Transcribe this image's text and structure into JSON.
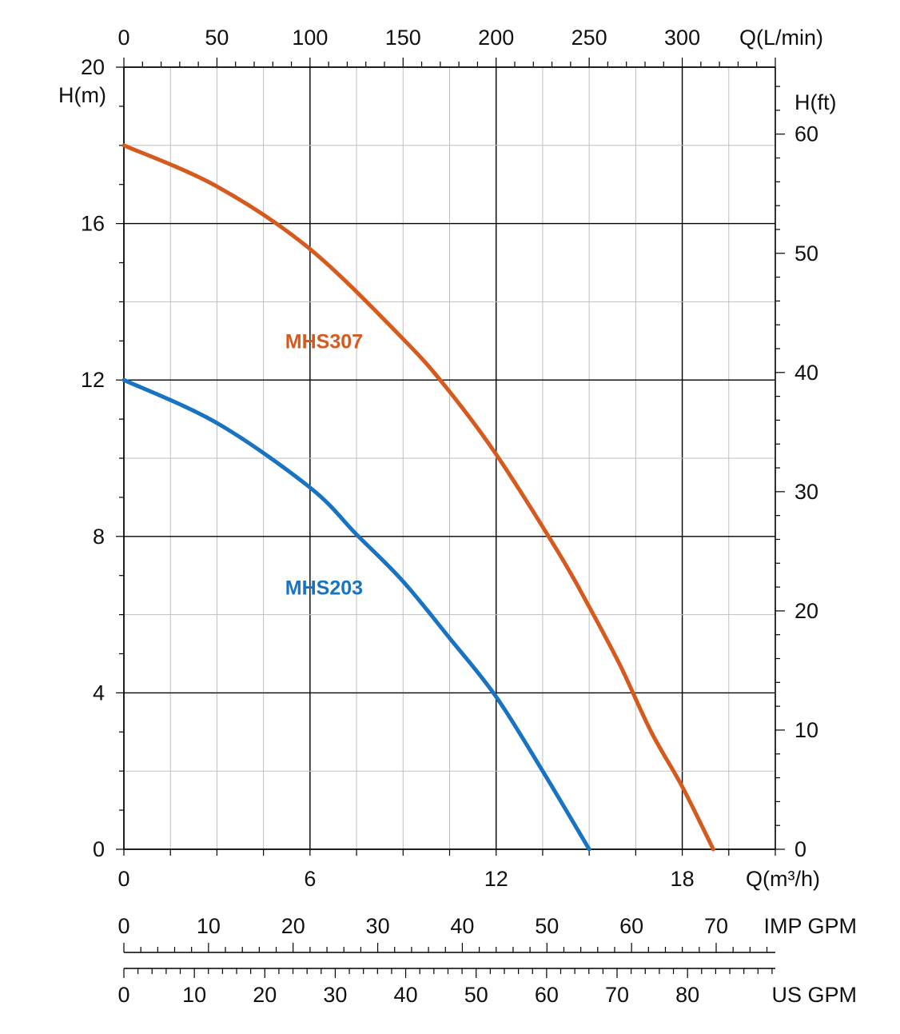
{
  "chart_data": {
    "type": "line",
    "x_axis": {
      "label": "Q(m³/h)",
      "min": 0,
      "max": 21,
      "ticks": [
        0,
        6,
        12,
        18
      ],
      "grid_step": 1.5
    },
    "x_axis_top": {
      "label": "Q(L/min)",
      "factor_from_m3h": 16.6667,
      "ticks": [
        0,
        50,
        100,
        150,
        200,
        250,
        300
      ]
    },
    "x_axis_imp": {
      "label": "IMP GPM",
      "factor_from_m3h": 3.6662,
      "ticks": [
        0,
        10,
        20,
        30,
        40,
        50,
        60,
        70
      ],
      "minor_step": 2
    },
    "x_axis_us": {
      "label": "US GPM",
      "factor_from_m3h": 4.4029,
      "ticks": [
        0,
        10,
        20,
        30,
        40,
        50,
        60,
        70,
        80
      ],
      "minor_step": 2
    },
    "y_axis": {
      "label": "H(m)",
      "min": 0,
      "max": 20,
      "ticks": [
        0,
        4,
        8,
        12,
        16,
        20
      ],
      "grid_step": 2
    },
    "y_axis_right": {
      "label": "H(ft)",
      "factor_from_m": 3.2808,
      "ticks": [
        0,
        10,
        20,
        30,
        40,
        50,
        60
      ],
      "minor_step": 2
    },
    "grid": true,
    "series": [
      {
        "name": "MHS307",
        "color": "#D65A1E",
        "label_at": [
          5.2,
          13.0
        ],
        "points": [
          [
            0,
            18.0
          ],
          [
            3,
            16.95
          ],
          [
            6,
            15.35
          ],
          [
            9,
            13.05
          ],
          [
            10.4,
            11.8
          ],
          [
            12,
            10.1
          ],
          [
            14,
            7.6
          ],
          [
            15,
            6.2
          ],
          [
            16,
            4.7
          ],
          [
            17,
            3.0
          ],
          [
            18,
            1.6
          ],
          [
            19,
            0.0
          ]
        ]
      },
      {
        "name": "MHS203",
        "color": "#1874C2",
        "label_at": [
          5.2,
          6.7
        ],
        "points": [
          [
            0,
            12.0
          ],
          [
            3,
            10.9
          ],
          [
            6,
            9.25
          ],
          [
            7.5,
            8.05
          ],
          [
            9,
            6.85
          ],
          [
            10.5,
            5.4
          ],
          [
            12,
            3.9
          ],
          [
            13.5,
            2.0
          ],
          [
            15,
            0.0
          ]
        ]
      }
    ]
  }
}
